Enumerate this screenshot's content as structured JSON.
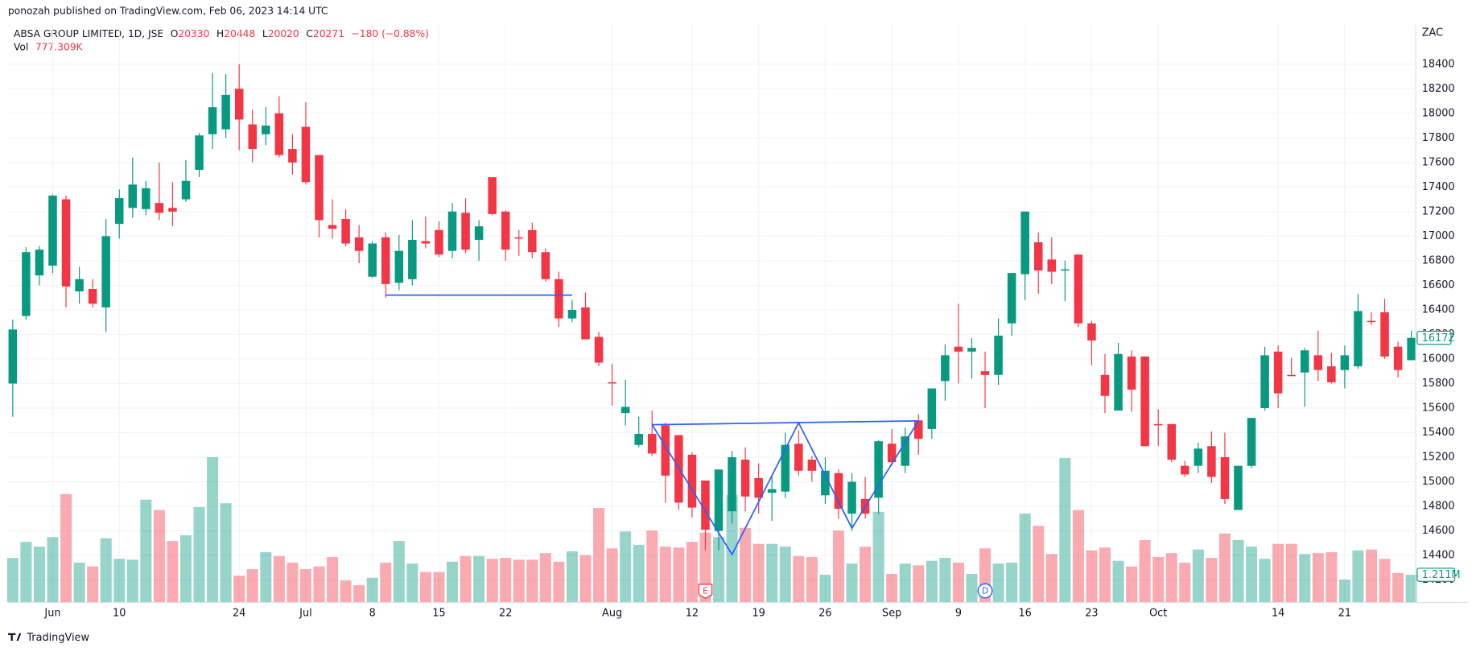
{
  "header": {
    "published": "ponozah published on TradingView.com, Feb 06, 2023 14:14 UTC",
    "symbol": "ABSA GROUP LIMITED, 1D, JSE",
    "ohlc": [
      {
        "label": "O",
        "value": 20330
      },
      {
        "label": "H",
        "value": 20448
      },
      {
        "label": "L",
        "value": 20020
      },
      {
        "label": "C",
        "value": 20271
      }
    ],
    "change": "−180 (−0.88%)",
    "vol_label": "Vol",
    "vol": "777.309K"
  },
  "footer": "TradingView",
  "chart_data": {
    "type": "candlestick",
    "currency": "ZAC",
    "categories": [
      null,
      null,
      null,
      "Jun",
      null,
      null,
      null,
      null,
      "10",
      null,
      null,
      null,
      null,
      null,
      null,
      null,
      null,
      "24",
      null,
      null,
      null,
      null,
      "Jul",
      null,
      null,
      null,
      null,
      "8",
      null,
      null,
      null,
      null,
      "15",
      null,
      null,
      null,
      null,
      "22",
      null,
      null,
      null,
      null,
      null,
      null,
      null,
      "Aug",
      null,
      null,
      null,
      null,
      null,
      "12",
      null,
      null,
      null,
      null,
      "19",
      null,
      null,
      null,
      null,
      "26",
      null,
      null,
      null,
      null,
      "Sep",
      null,
      null,
      null,
      null,
      "9",
      null,
      null,
      null,
      null,
      "16",
      null,
      null,
      null,
      null,
      "23",
      null,
      null,
      null,
      null,
      "Oct",
      null,
      null,
      null,
      null,
      null,
      null,
      null,
      null,
      "14",
      null,
      null,
      null,
      null,
      "21",
      null,
      null,
      null,
      null,
      null
    ],
    "open": [
      15800,
      16350,
      16680,
      16760,
      17300,
      16550,
      16570,
      16420,
      17100,
      17230,
      17220,
      17270,
      17230,
      17300,
      17540,
      17830,
      17870,
      18200,
      17910,
      17830,
      18000,
      17710,
      17890,
      17660,
      17090,
      17140,
      16990,
      16670,
      16990,
      16620,
      16650,
      16960,
      17050,
      16880,
      17190,
      16970,
      17480,
      17200,
      16990,
      17050,
      16870,
      16650,
      16330,
      16420,
      16180,
      15810,
      15560,
      15300,
      15390,
      15460,
      15380,
      15220,
      15010,
      14600,
      14760,
      15180,
      15030,
      14910,
      14920,
      15310,
      15180,
      14890,
      15070,
      14740,
      14860,
      14870,
      15310,
      15130,
      15500,
      15430,
      15820,
      16100,
      16060,
      15900,
      15870,
      16290,
      16690,
      16950,
      16810,
      16720,
      16850,
      16290,
      15870,
      15580,
      16020,
      16020,
      15470,
      15470,
      15130,
      15130,
      15290,
      15200,
      14770,
      15130,
      15600,
      16060,
      15870,
      15890,
      16030,
      15940,
      15910,
      15940,
      16310,
      16380,
      16100,
      15990
    ],
    "high": [
      16320,
      16910,
      16920,
      17340,
      17330,
      16750,
      16650,
      17140,
      17380,
      17640,
      17450,
      17600,
      17440,
      17620,
      17840,
      18330,
      18320,
      18400,
      18030,
      18050,
      18140,
      17830,
      18090,
      17660,
      17300,
      17220,
      17090,
      16960,
      17030,
      17010,
      17130,
      17160,
      17120,
      17270,
      17310,
      17130,
      17480,
      17210,
      17050,
      17110,
      16900,
      16710,
      16480,
      16540,
      16220,
      15960,
      15830,
      15530,
      15580,
      15480,
      15380,
      15240,
      15010,
      15100,
      15250,
      15280,
      15150,
      15040,
      15400,
      15420,
      15210,
      15200,
      15100,
      15070,
      15040,
      15340,
      15430,
      15440,
      15550,
      15760,
      16120,
      16450,
      16170,
      16060,
      16330,
      16700,
      17200,
      17030,
      16990,
      16800,
      16850,
      16310,
      16040,
      16130,
      16070,
      16020,
      15590,
      15470,
      15170,
      15320,
      15410,
      15400,
      15130,
      15520,
      16100,
      16110,
      16010,
      16090,
      16230,
      16050,
      16110,
      16530,
      16380,
      16490,
      16140,
      16230
    ],
    "low": [
      15530,
      16320,
      16600,
      16700,
      16420,
      16450,
      16420,
      16220,
      16980,
      17150,
      17170,
      17130,
      17080,
      17280,
      17480,
      17710,
      17800,
      17700,
      17600,
      17740,
      17640,
      17500,
      17420,
      16990,
      16980,
      16920,
      16780,
      16660,
      16500,
      16560,
      16600,
      16900,
      16830,
      16820,
      16860,
      16800,
      17170,
      16800,
      16840,
      16820,
      16630,
      16260,
      16300,
      16160,
      15940,
      15620,
      15460,
      15280,
      15210,
      14830,
      14770,
      14710,
      14440,
      14440,
      14660,
      14760,
      14740,
      14680,
      14870,
      15050,
      15000,
      14820,
      14700,
      14600,
      14700,
      14740,
      15130,
      15070,
      15220,
      15350,
      15660,
      15800,
      15840,
      15600,
      15790,
      16190,
      16480,
      16530,
      16610,
      16470,
      16260,
      15950,
      15560,
      15580,
      15570,
      15290,
      15290,
      15160,
      15040,
      15070,
      14990,
      14820,
      14770,
      15110,
      15580,
      15600,
      15860,
      15610,
      15820,
      15800,
      15760,
      15920,
      16280,
      16000,
      15850,
      15990
    ],
    "close": [
      16240,
      16870,
      16890,
      17330,
      16590,
      16650,
      16450,
      17000,
      17310,
      17420,
      17390,
      17190,
      17200,
      17450,
      17820,
      18050,
      18150,
      17950,
      17710,
      17900,
      17660,
      17600,
      17440,
      17130,
      17060,
      16940,
      16880,
      16940,
      16610,
      16880,
      16970,
      16940,
      16850,
      17200,
      16890,
      17080,
      17180,
      16890,
      16980,
      16870,
      16650,
      16330,
      16400,
      16160,
      15970,
      15800,
      15610,
      15390,
      15230,
      15050,
      14830,
      14790,
      14610,
      15100,
      15200,
      14880,
      14870,
      14940,
      15300,
      15090,
      15090,
      15090,
      14780,
      15000,
      14740,
      15330,
      15160,
      15370,
      15350,
      15760,
      16030,
      16060,
      16090,
      15870,
      16190,
      16700,
      17200,
      16720,
      16710,
      16730,
      16290,
      16150,
      15700,
      16040,
      15750,
      15290,
      15460,
      15180,
      15060,
      15270,
      15040,
      14860,
      15130,
      15520,
      16030,
      15720,
      15860,
      16070,
      15910,
      15810,
      16030,
      16390,
      16300,
      16020,
      15910,
      16172
    ],
    "volume": [
      1.96,
      2.67,
      2.46,
      2.88,
      4.79,
      1.75,
      1.58,
      2.83,
      1.92,
      1.88,
      4.54,
      4.08,
      2.71,
      2.96,
      4.21,
      6.42,
      4.38,
      1.17,
      1.46,
      2.21,
      2.04,
      1.75,
      1.46,
      1.58,
      2.0,
      0.96,
      0.75,
      1.08,
      1.75,
      2.71,
      1.71,
      1.33,
      1.33,
      1.79,
      2.04,
      2.04,
      1.92,
      1.96,
      1.88,
      1.88,
      2.17,
      1.79,
      2.25,
      2.08,
      4.17,
      2.38,
      3.13,
      2.54,
      3.17,
      2.46,
      2.42,
      2.67,
      3.08,
      2.88,
      4.75,
      3.29,
      2.58,
      2.58,
      2.46,
      2.04,
      2.0,
      1.21,
      3.17,
      1.71,
      2.46,
      4.0,
      1.25,
      1.71,
      1.63,
      1.83,
      1.96,
      1.75,
      1.25,
      2.38,
      1.71,
      1.75,
      3.92,
      3.38,
      2.13,
      6.38,
      4.08,
      2.29,
      2.42,
      1.83,
      1.58,
      2.75,
      2.0,
      2.17,
      1.75,
      2.33,
      1.96,
      3.04,
      2.75,
      2.46,
      1.92,
      2.58,
      2.58,
      2.13,
      2.17,
      2.21,
      1.0,
      2.29,
      2.33,
      1.92,
      1.29,
      1.211
    ],
    "volume_last_label": "1.211M",
    "up_color": "#089981",
    "down_color": "#f23645",
    "ylim": [
      14020,
      18670
    ],
    "yticks": [
      14200,
      14400,
      14600,
      14800,
      15000,
      15200,
      15400,
      15600,
      15800,
      16000,
      16200,
      16400,
      16600,
      16800,
      17000,
      17200,
      17400,
      17600,
      17800,
      18000,
      18200,
      18400
    ],
    "grid": true,
    "drawings": [
      {
        "color": "#2962ff",
        "x": [
          28,
          42
        ],
        "y": [
          16520,
          16520
        ]
      },
      {
        "color": "#2962ff",
        "x": [
          48,
          68
        ],
        "y": [
          15465,
          15496
        ]
      },
      {
        "color": "#2962ff",
        "x": [
          48,
          54,
          59,
          63,
          68
        ],
        "y": [
          15465,
          14408,
          15480,
          14622,
          15496
        ]
      }
    ],
    "events": [
      {
        "label": "E",
        "index": 52,
        "color": "#f23645"
      },
      {
        "label": "D",
        "index": 73,
        "color": "#2962ff"
      }
    ]
  }
}
